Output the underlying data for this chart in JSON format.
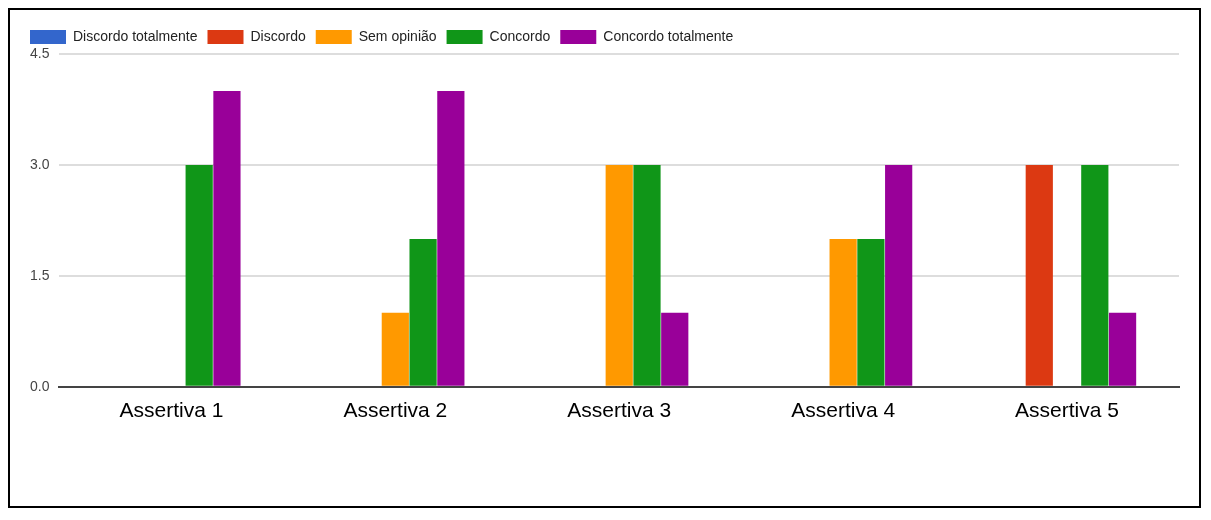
{
  "chart_data": {
    "type": "bar",
    "categories": [
      "Assertiva 1",
      "Assertiva 2",
      "Assertiva 3",
      "Assertiva 4",
      "Assertiva 5"
    ],
    "series": [
      {
        "name": "Discordo totalmente",
        "color": "#3366cc",
        "values": [
          0,
          0,
          0,
          0,
          0
        ]
      },
      {
        "name": "Discordo",
        "color": "#dc3912",
        "values": [
          0,
          0,
          0,
          0,
          3
        ]
      },
      {
        "name": "Sem opinião",
        "color": "#ff9900",
        "values": [
          0,
          1,
          3,
          2,
          0
        ]
      },
      {
        "name": "Concordo",
        "color": "#109618",
        "values": [
          3,
          2,
          3,
          2,
          3
        ]
      },
      {
        "name": "Concordo totalmente",
        "color": "#990099",
        "values": [
          4,
          4,
          1,
          3,
          1
        ]
      }
    ],
    "ylim": [
      0,
      4.5
    ],
    "yticks": [
      {
        "value": 0,
        "label": "0.0"
      },
      1.5,
      {
        "value": 3,
        "label": "3.0"
      },
      4.5
    ],
    "grid": "y",
    "legend": "top left"
  }
}
